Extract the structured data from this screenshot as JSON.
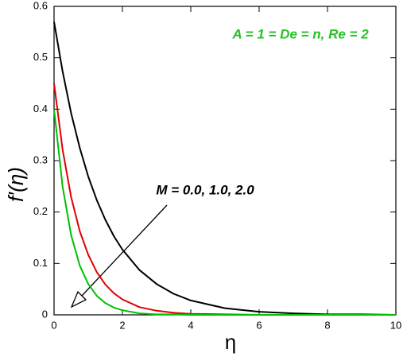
{
  "chart_data": {
    "type": "line",
    "x_label": "η",
    "y_label": "f′(η)",
    "annotations": [
      "A = 1 = De = n, Re = 2",
      "M = 0.0, 1.0, 2.0"
    ],
    "x": [
      0,
      0.25,
      0.5,
      0.75,
      1,
      1.25,
      1.5,
      1.75,
      2,
      2.5,
      3,
      3.5,
      4,
      5,
      6,
      7,
      8,
      9,
      10
    ],
    "series": [
      {
        "color": "#000000",
        "values": [
          0.57,
          0.473,
          0.392,
          0.325,
          0.269,
          0.223,
          0.185,
          0.153,
          0.127,
          0.087,
          0.06,
          0.041,
          0.028,
          0.013,
          0.006,
          0.003,
          0.001,
          0.001,
          0.0
        ]
      },
      {
        "color": "#e00000",
        "values": [
          0.45,
          0.321,
          0.229,
          0.163,
          0.117,
          0.083,
          0.059,
          0.042,
          0.03,
          0.015,
          0.008,
          0.004,
          0.002,
          0.001,
          0,
          0,
          0,
          0,
          0
        ]
      },
      {
        "color": "#00c000",
        "values": [
          0.4,
          0.249,
          0.155,
          0.096,
          0.06,
          0.037,
          0.023,
          0.014,
          0.009,
          0.003,
          0.001,
          0.001,
          0,
          0,
          0,
          0,
          0,
          0,
          0
        ]
      }
    ],
    "xlim": [
      0,
      10
    ],
    "xticks": [
      0,
      2,
      4,
      6,
      8,
      10
    ],
    "ylim": [
      0,
      0.6
    ],
    "yticks": [
      0,
      0.1,
      0.2,
      0.3,
      0.4,
      0.5,
      0.6
    ]
  }
}
